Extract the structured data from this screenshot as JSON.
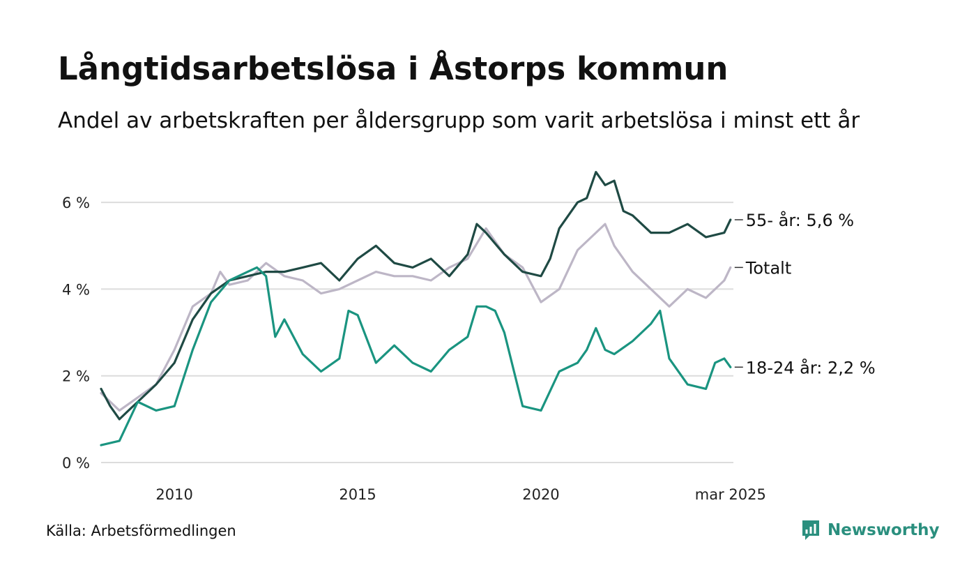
{
  "title": "Långtidsarbetslösa i Åstorps kommun",
  "subtitle": "Andel av arbetskraften per åldersgrupp som varit arbetslösa i minst ett år",
  "source": "Källa: Arbetsförmedlingen",
  "brand": {
    "name": "Newsworthy",
    "icon": "newsworthy-logo-icon",
    "color": "#2a8f7e"
  },
  "chart_data": {
    "type": "line",
    "x_axis": {
      "range": [
        2008.0,
        2025.25
      ],
      "tick_values": [
        2010,
        2015,
        2020,
        2025.17
      ],
      "tick_labels": [
        "2010",
        "2015",
        "2020",
        "mar 2025"
      ]
    },
    "y_axis": {
      "range": [
        0,
        7
      ],
      "tick_values": [
        0,
        2,
        4,
        6
      ],
      "tick_labels": [
        "0 %",
        "2 %",
        "4 %",
        "6 %"
      ],
      "unit": "%"
    },
    "grid": "horizontal",
    "series": [
      {
        "name": "Totalt",
        "label": "Totalt",
        "color": "#bdb6c6",
        "x": [
          2008.0,
          2008.5,
          2009.0,
          2009.5,
          2010.0,
          2010.5,
          2011.0,
          2011.25,
          2011.5,
          2012.0,
          2012.5,
          2013.0,
          2013.5,
          2014.0,
          2014.5,
          2015.0,
          2015.5,
          2016.0,
          2016.5,
          2017.0,
          2017.5,
          2018.0,
          2018.5,
          2019.0,
          2019.5,
          2020.0,
          2020.5,
          2021.0,
          2021.5,
          2021.75,
          2022.0,
          2022.5,
          2023.0,
          2023.5,
          2024.0,
          2024.5,
          2025.0,
          2025.17
        ],
        "values": [
          1.6,
          1.2,
          1.5,
          1.8,
          2.6,
          3.6,
          3.9,
          4.4,
          4.1,
          4.2,
          4.6,
          4.3,
          4.2,
          3.9,
          4.0,
          4.2,
          4.4,
          4.3,
          4.3,
          4.2,
          4.5,
          4.7,
          5.4,
          4.8,
          4.5,
          3.7,
          4.0,
          4.9,
          5.3,
          5.5,
          5.0,
          4.4,
          4.0,
          3.6,
          4.0,
          3.8,
          4.2,
          4.5
        ]
      },
      {
        "name": "55- år",
        "label": "55- år: 5,6 %",
        "color": "#1f4a44",
        "x": [
          2008.0,
          2008.25,
          2008.5,
          2008.75,
          2009.0,
          2009.5,
          2010.0,
          2010.5,
          2011.0,
          2011.5,
          2012.0,
          2012.5,
          2013.0,
          2013.5,
          2014.0,
          2014.5,
          2015.0,
          2015.5,
          2016.0,
          2016.5,
          2017.0,
          2017.5,
          2018.0,
          2018.25,
          2018.5,
          2019.0,
          2019.5,
          2020.0,
          2020.25,
          2020.5,
          2021.0,
          2021.25,
          2021.5,
          2021.75,
          2022.0,
          2022.25,
          2022.5,
          2023.0,
          2023.5,
          2024.0,
          2024.5,
          2025.0,
          2025.17
        ],
        "values": [
          1.7,
          1.3,
          1.0,
          1.2,
          1.4,
          1.8,
          2.3,
          3.3,
          3.9,
          4.2,
          4.3,
          4.4,
          4.4,
          4.5,
          4.6,
          4.2,
          4.7,
          5.0,
          4.6,
          4.5,
          4.7,
          4.3,
          4.8,
          5.5,
          5.3,
          4.8,
          4.4,
          4.3,
          4.7,
          5.4,
          6.0,
          6.1,
          6.7,
          6.4,
          6.5,
          5.8,
          5.7,
          5.3,
          5.3,
          5.5,
          5.2,
          5.3,
          5.6
        ]
      },
      {
        "name": "18-24 år",
        "label": "18-24 år: 2,2 %",
        "color": "#1a9480",
        "x": [
          2008.0,
          2008.5,
          2009.0,
          2009.5,
          2010.0,
          2010.5,
          2011.0,
          2011.5,
          2012.0,
          2012.25,
          2012.5,
          2012.75,
          2013.0,
          2013.5,
          2014.0,
          2014.5,
          2014.75,
          2015.0,
          2015.5,
          2016.0,
          2016.5,
          2017.0,
          2017.5,
          2018.0,
          2018.25,
          2018.5,
          2018.75,
          2019.0,
          2019.5,
          2020.0,
          2020.5,
          2021.0,
          2021.25,
          2021.5,
          2021.75,
          2022.0,
          2022.5,
          2023.0,
          2023.25,
          2023.5,
          2024.0,
          2024.5,
          2024.75,
          2025.0,
          2025.17
        ],
        "values": [
          0.4,
          0.5,
          1.4,
          1.2,
          1.3,
          2.6,
          3.7,
          4.2,
          4.4,
          4.5,
          4.3,
          2.9,
          3.3,
          2.5,
          2.1,
          2.4,
          3.5,
          3.4,
          2.3,
          2.7,
          2.3,
          2.1,
          2.6,
          2.9,
          3.6,
          3.6,
          3.5,
          3.0,
          1.3,
          1.2,
          2.1,
          2.3,
          2.6,
          3.1,
          2.6,
          2.5,
          2.8,
          3.2,
          3.5,
          2.4,
          1.8,
          1.7,
          2.3,
          2.4,
          2.2
        ]
      }
    ]
  }
}
